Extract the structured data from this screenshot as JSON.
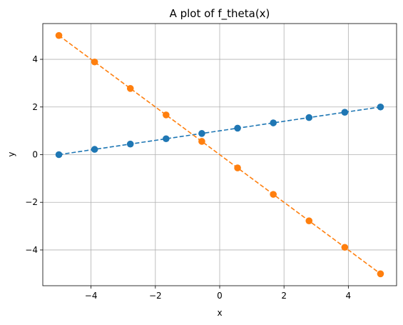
{
  "chart_data": {
    "type": "line",
    "title": "A plot of f_theta(x)",
    "xlabel": "x",
    "ylabel": "y",
    "xlim": [
      -5.5,
      5.5
    ],
    "ylim": [
      -5.5,
      5.5
    ],
    "xticks": [
      -4,
      -2,
      0,
      2,
      4
    ],
    "yticks": [
      -4,
      -2,
      0,
      2,
      4
    ],
    "xtick_labels": [
      "−4",
      "−2",
      "0",
      "2",
      "4"
    ],
    "ytick_labels": [
      "−4",
      "−2",
      "0",
      "2",
      "4"
    ],
    "grid": true,
    "x": [
      -5,
      -3.889,
      -2.778,
      -1.667,
      -0.556,
      0.556,
      1.667,
      2.778,
      3.889,
      5
    ],
    "series": [
      {
        "color": "#1f77b4",
        "line_style": "dashed",
        "marker": "circle",
        "values": [
          0,
          0.222,
          0.444,
          0.667,
          0.889,
          1.111,
          1.333,
          1.556,
          1.778,
          2
        ]
      },
      {
        "color": "#ff7f0e",
        "line_style": "dashed",
        "marker": "circle",
        "values": [
          5,
          3.889,
          2.778,
          1.667,
          0.556,
          -0.556,
          -1.667,
          -2.778,
          -3.889,
          -5
        ]
      }
    ]
  }
}
